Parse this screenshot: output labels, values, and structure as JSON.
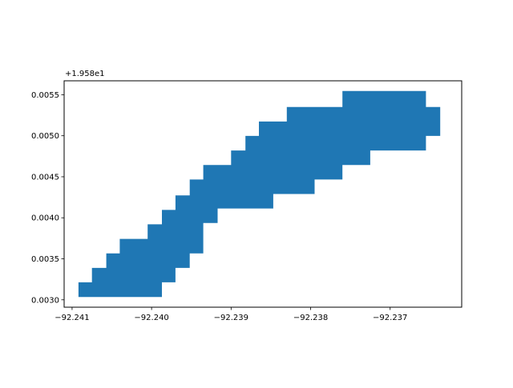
{
  "chart_data": {
    "type": "area",
    "title": "",
    "xlabel": "",
    "ylabel": "",
    "y_offset_label": "+1.958e1",
    "xlim": [
      -92.2411,
      -92.2361
    ],
    "ylim": [
      0.00291,
      0.00567
    ],
    "grid": false,
    "x_ticks": [
      {
        "value": -92.241,
        "label": "−92.241"
      },
      {
        "value": -92.24,
        "label": "−92.240"
      },
      {
        "value": -92.239,
        "label": "−92.239"
      },
      {
        "value": -92.238,
        "label": "−92.238"
      },
      {
        "value": -92.237,
        "label": "−92.237"
      }
    ],
    "y_ticks": [
      {
        "value": 0.003,
        "label": "0.0030"
      },
      {
        "value": 0.0035,
        "label": "0.0035"
      },
      {
        "value": 0.004,
        "label": "0.0040"
      },
      {
        "value": 0.0045,
        "label": "0.0045"
      },
      {
        "value": 0.005,
        "label": "0.0050"
      },
      {
        "value": 0.0055,
        "label": "0.0055"
      }
    ],
    "series": [
      {
        "color": "#1f77b4",
        "polygon": [
          [
            -92.24092,
            0.003035
          ],
          [
            -92.24092,
            0.003213
          ],
          [
            -92.24075,
            0.003213
          ],
          [
            -92.24075,
            0.003389
          ],
          [
            -92.24057,
            0.003389
          ],
          [
            -92.24057,
            0.003566
          ],
          [
            -92.2404,
            0.003566
          ],
          [
            -92.2404,
            0.003743
          ],
          [
            -92.24005,
            0.003743
          ],
          [
            -92.24005,
            0.00392
          ],
          [
            -92.23987,
            0.00392
          ],
          [
            -92.23987,
            0.004096
          ],
          [
            -92.2397,
            0.004096
          ],
          [
            -92.2397,
            0.004273
          ],
          [
            -92.23952,
            0.004273
          ],
          [
            -92.23952,
            0.004467
          ],
          [
            -92.23935,
            0.004467
          ],
          [
            -92.23935,
            0.004644
          ],
          [
            -92.239,
            0.004644
          ],
          [
            -92.239,
            0.004821
          ],
          [
            -92.23882,
            0.004821
          ],
          [
            -92.23882,
            0.004998
          ],
          [
            -92.23865,
            0.004998
          ],
          [
            -92.23865,
            0.005174
          ],
          [
            -92.2383,
            0.005174
          ],
          [
            -92.2383,
            0.005351
          ],
          [
            -92.2376,
            0.005351
          ],
          [
            -92.2376,
            0.005545
          ],
          [
            -92.23655,
            0.005545
          ],
          [
            -92.23655,
            0.005351
          ],
          [
            -92.23637,
            0.005351
          ],
          [
            -92.23637,
            0.004998
          ],
          [
            -92.23655,
            0.004998
          ],
          [
            -92.23655,
            0.004821
          ],
          [
            -92.23725,
            0.004821
          ],
          [
            -92.23725,
            0.004644
          ],
          [
            -92.2376,
            0.004644
          ],
          [
            -92.2376,
            0.004467
          ],
          [
            -92.23795,
            0.004467
          ],
          [
            -92.23795,
            0.00429
          ],
          [
            -92.23847,
            0.00429
          ],
          [
            -92.23847,
            0.004113
          ],
          [
            -92.23917,
            0.004113
          ],
          [
            -92.23917,
            0.003937
          ],
          [
            -92.23935,
            0.003937
          ],
          [
            -92.23935,
            0.003566
          ],
          [
            -92.23952,
            0.003566
          ],
          [
            -92.23952,
            0.003389
          ],
          [
            -92.2397,
            0.003389
          ],
          [
            -92.2397,
            0.003213
          ],
          [
            -92.23987,
            0.003213
          ],
          [
            -92.23987,
            0.003035
          ]
        ]
      }
    ]
  }
}
